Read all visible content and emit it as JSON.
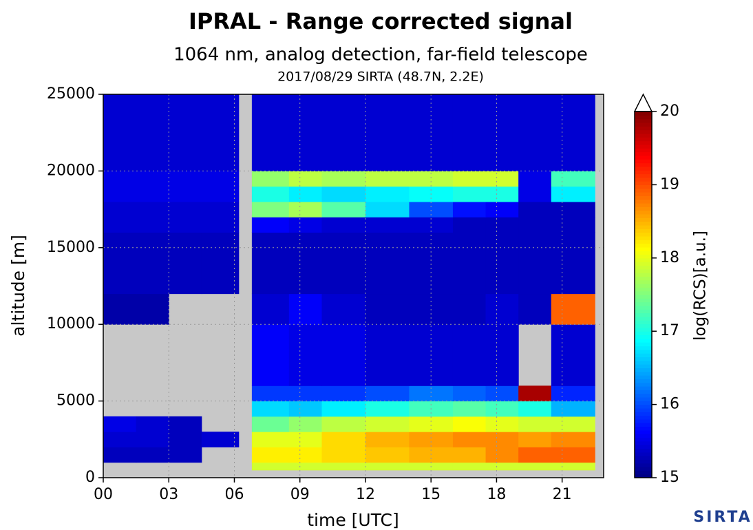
{
  "chart_data": {
    "type": "heatmap",
    "title": "IPRAL - Range corrected signal",
    "subtitle": "1064 nm, analog detection, far-field telescope",
    "subtitle2": "2017/08/29 SIRTA (48.7N, 2.2E)",
    "xlabel": "time [UTC]",
    "ylabel": "altitude [m]",
    "colorbar_label": "log(RCS)[a.u.]",
    "xlim": [
      0,
      22.9
    ],
    "ylim": [
      0,
      25000
    ],
    "xticks": [
      {
        "value": 0,
        "label": "00"
      },
      {
        "value": 3,
        "label": "03"
      },
      {
        "value": 6,
        "label": "06"
      },
      {
        "value": 9,
        "label": "09"
      },
      12,
      15,
      18,
      21
    ],
    "yticks": [
      0,
      5000,
      10000,
      15000,
      20000,
      25000
    ],
    "clim": [
      15,
      20
    ],
    "cticks": [
      15,
      16,
      17,
      18,
      19,
      20
    ],
    "colormap": "jet",
    "grid": true,
    "xbins": [
      0,
      1.5,
      3,
      4.5,
      6.2,
      6.8,
      8.5,
      10,
      12,
      14,
      16,
      17.5,
      19,
      20.5,
      22.5
    ],
    "ybins": [
      0,
      500,
      1000,
      2000,
      3000,
      4000,
      5000,
      6000,
      10000,
      12000,
      16000,
      17000,
      18000,
      19000,
      20000,
      25000
    ],
    "z": [
      [
        null,
        null,
        null,
        null,
        null,
        null,
        null,
        null,
        null,
        null,
        null,
        null,
        null,
        null
      ],
      [
        null,
        null,
        null,
        null,
        null,
        17.9,
        17.9,
        17.9,
        17.9,
        17.9,
        17.9,
        17.9,
        17.9,
        17.9
      ],
      [
        15.3,
        15.3,
        15.3,
        null,
        null,
        18.2,
        18.2,
        18.3,
        18.4,
        18.5,
        18.5,
        18.7,
        18.9,
        18.9
      ],
      [
        15.4,
        15.4,
        15.3,
        15.4,
        null,
        18.0,
        18.0,
        18.3,
        18.5,
        18.6,
        18.7,
        18.7,
        18.6,
        18.7
      ],
      [
        15.5,
        15.4,
        15.3,
        null,
        null,
        17.4,
        17.6,
        17.8,
        17.9,
        18.0,
        18.1,
        18.0,
        17.9,
        17.9
      ],
      [
        null,
        null,
        null,
        null,
        null,
        16.7,
        16.6,
        16.8,
        17.0,
        17.2,
        17.3,
        17.2,
        17.0,
        16.5
      ],
      [
        null,
        null,
        null,
        null,
        null,
        15.9,
        15.9,
        15.9,
        16.0,
        16.2,
        16.1,
        16.0,
        19.8,
        15.8
      ],
      [
        null,
        null,
        null,
        null,
        null,
        15.6,
        15.5,
        15.5,
        15.4,
        15.4,
        15.4,
        15.4,
        null,
        15.4
      ],
      [
        15.2,
        15.2,
        null,
        null,
        null,
        15.4,
        15.6,
        15.4,
        15.3,
        15.3,
        15.3,
        15.4,
        15.3,
        18.9
      ],
      [
        15.3,
        15.3,
        15.3,
        15.3,
        null,
        15.3,
        15.3,
        15.3,
        15.3,
        15.3,
        15.3,
        15.3,
        15.3,
        15.3
      ],
      [
        15.4,
        15.4,
        15.4,
        15.4,
        null,
        15.6,
        15.5,
        15.4,
        15.4,
        15.4,
        15.3,
        15.3,
        15.3,
        15.3
      ],
      [
        15.4,
        15.4,
        15.4,
        15.4,
        null,
        17.5,
        17.7,
        17.3,
        16.7,
        16.0,
        15.7,
        15.6,
        15.3,
        15.3
      ],
      [
        15.5,
        15.5,
        15.5,
        15.5,
        null,
        17.0,
        16.8,
        16.7,
        16.8,
        16.9,
        17.0,
        17.0,
        15.5,
        16.8
      ],
      [
        15.5,
        15.5,
        15.5,
        15.5,
        null,
        17.6,
        17.8,
        17.7,
        17.8,
        17.8,
        17.9,
        17.9,
        15.5,
        17.2
      ],
      [
        15.4,
        15.4,
        15.4,
        15.4,
        null,
        15.4,
        15.4,
        15.4,
        15.4,
        15.4,
        15.4,
        15.4,
        15.4,
        15.4
      ]
    ]
  },
  "logo": "SIRTA"
}
